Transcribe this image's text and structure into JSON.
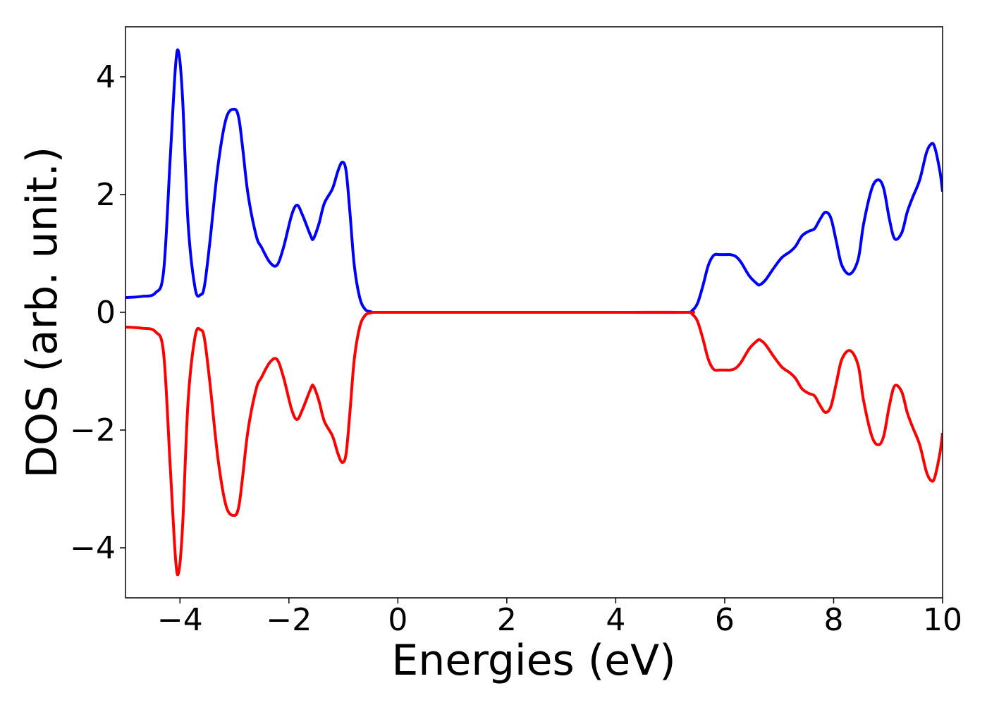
{
  "chart_data": {
    "type": "line",
    "title": "",
    "xlabel": "Energies (eV)",
    "ylabel": "DOS (arb. unit.)",
    "xlim": [
      -5,
      10
    ],
    "ylim": [
      -4.85,
      4.85
    ],
    "xticks": [
      -4,
      -2,
      0,
      2,
      4,
      6,
      8,
      10
    ],
    "yticks": [
      -4,
      -2,
      0,
      2,
      4
    ],
    "xtick_labels": [
      "−4",
      "−2",
      "0",
      "2",
      "4",
      "6",
      "8",
      "10"
    ],
    "ytick_labels": [
      "−4",
      "−2",
      "0",
      "2",
      "4"
    ],
    "grid": false,
    "legend": "none",
    "series": [
      {
        "color": "#0000ff",
        "x": [
          -5.0,
          -4.7,
          -4.45,
          -4.3,
          -4.18,
          -4.08,
          -4.02,
          -3.95,
          -3.85,
          -3.72,
          -3.62,
          -3.55,
          -3.45,
          -3.3,
          -3.15,
          -3.0,
          -2.92,
          -2.85,
          -2.75,
          -2.6,
          -2.5,
          -2.35,
          -2.22,
          -2.1,
          -1.95,
          -1.85,
          -1.75,
          -1.6,
          -1.55,
          -1.45,
          -1.35,
          -1.2,
          -1.1,
          -1.02,
          -0.95,
          -0.88,
          -0.8,
          -0.7,
          -0.6,
          -0.5,
          -0.45,
          -0.3,
          0.0,
          2.0,
          4.0,
          5.3,
          5.4,
          5.5,
          5.6,
          5.7,
          5.8,
          5.9,
          6.0,
          6.1,
          6.2,
          6.3,
          6.45,
          6.6,
          6.65,
          6.75,
          6.9,
          7.05,
          7.2,
          7.3,
          7.42,
          7.55,
          7.65,
          7.75,
          7.85,
          7.95,
          8.05,
          8.15,
          8.3,
          8.45,
          8.55,
          8.7,
          8.82,
          8.92,
          9.02,
          9.12,
          9.25,
          9.35,
          9.45,
          9.58,
          9.7,
          9.78,
          9.85,
          9.95,
          10.0
        ],
        "y": [
          0.25,
          0.27,
          0.33,
          0.7,
          2.6,
          4.2,
          4.4,
          3.6,
          1.5,
          0.4,
          0.3,
          0.45,
          1.2,
          2.5,
          3.3,
          3.45,
          3.3,
          2.8,
          2.0,
          1.3,
          1.1,
          0.85,
          0.8,
          1.1,
          1.65,
          1.82,
          1.65,
          1.3,
          1.25,
          1.5,
          1.85,
          2.1,
          2.4,
          2.55,
          2.4,
          1.7,
          0.8,
          0.25,
          0.05,
          0.01,
          0.0,
          0.0,
          0.0,
          0.0,
          0.0,
          0.0,
          0.03,
          0.15,
          0.45,
          0.8,
          0.97,
          0.98,
          0.98,
          0.98,
          0.95,
          0.85,
          0.62,
          0.48,
          0.47,
          0.55,
          0.75,
          0.93,
          1.03,
          1.12,
          1.3,
          1.38,
          1.42,
          1.58,
          1.7,
          1.6,
          1.2,
          0.8,
          0.65,
          0.9,
          1.5,
          2.1,
          2.25,
          2.1,
          1.6,
          1.25,
          1.35,
          1.7,
          1.95,
          2.25,
          2.7,
          2.85,
          2.82,
          2.4,
          2.05
        ]
      },
      {
        "color": "#ff0000",
        "x": [
          -5.0,
          -4.7,
          -4.45,
          -4.3,
          -4.18,
          -4.08,
          -4.02,
          -3.95,
          -3.85,
          -3.72,
          -3.62,
          -3.55,
          -3.45,
          -3.3,
          -3.15,
          -3.0,
          -2.92,
          -2.85,
          -2.75,
          -2.6,
          -2.5,
          -2.35,
          -2.22,
          -2.1,
          -1.95,
          -1.85,
          -1.75,
          -1.6,
          -1.55,
          -1.45,
          -1.35,
          -1.2,
          -1.1,
          -1.02,
          -0.95,
          -0.88,
          -0.8,
          -0.7,
          -0.6,
          -0.5,
          -0.45,
          -0.3,
          0.0,
          2.0,
          4.0,
          5.3,
          5.4,
          5.5,
          5.6,
          5.7,
          5.8,
          5.9,
          6.0,
          6.1,
          6.2,
          6.3,
          6.45,
          6.6,
          6.65,
          6.75,
          6.9,
          7.05,
          7.2,
          7.3,
          7.42,
          7.55,
          7.65,
          7.75,
          7.85,
          7.95,
          8.05,
          8.15,
          8.3,
          8.45,
          8.55,
          8.7,
          8.82,
          8.92,
          9.02,
          9.12,
          9.25,
          9.35,
          9.45,
          9.58,
          9.7,
          9.78,
          9.85,
          9.95,
          10.0
        ],
        "y": [
          -0.25,
          -0.27,
          -0.33,
          -0.7,
          -2.6,
          -4.2,
          -4.4,
          -3.6,
          -1.5,
          -0.4,
          -0.3,
          -0.45,
          -1.2,
          -2.5,
          -3.3,
          -3.45,
          -3.3,
          -2.8,
          -2.0,
          -1.3,
          -1.1,
          -0.85,
          -0.8,
          -1.1,
          -1.65,
          -1.82,
          -1.65,
          -1.3,
          -1.25,
          -1.5,
          -1.85,
          -2.1,
          -2.4,
          -2.55,
          -2.4,
          -1.7,
          -0.8,
          -0.25,
          -0.05,
          -0.01,
          0.0,
          0.0,
          0.0,
          0.0,
          0.0,
          0.0,
          -0.03,
          -0.15,
          -0.45,
          -0.8,
          -0.97,
          -0.98,
          -0.98,
          -0.98,
          -0.95,
          -0.85,
          -0.62,
          -0.48,
          -0.47,
          -0.55,
          -0.75,
          -0.93,
          -1.03,
          -1.12,
          -1.3,
          -1.38,
          -1.42,
          -1.58,
          -1.7,
          -1.6,
          -1.2,
          -0.8,
          -0.65,
          -0.9,
          -1.5,
          -2.1,
          -2.25,
          -2.1,
          -1.6,
          -1.25,
          -1.35,
          -1.7,
          -1.95,
          -2.25,
          -2.7,
          -2.85,
          -2.82,
          -2.4,
          -2.05
        ]
      }
    ]
  }
}
